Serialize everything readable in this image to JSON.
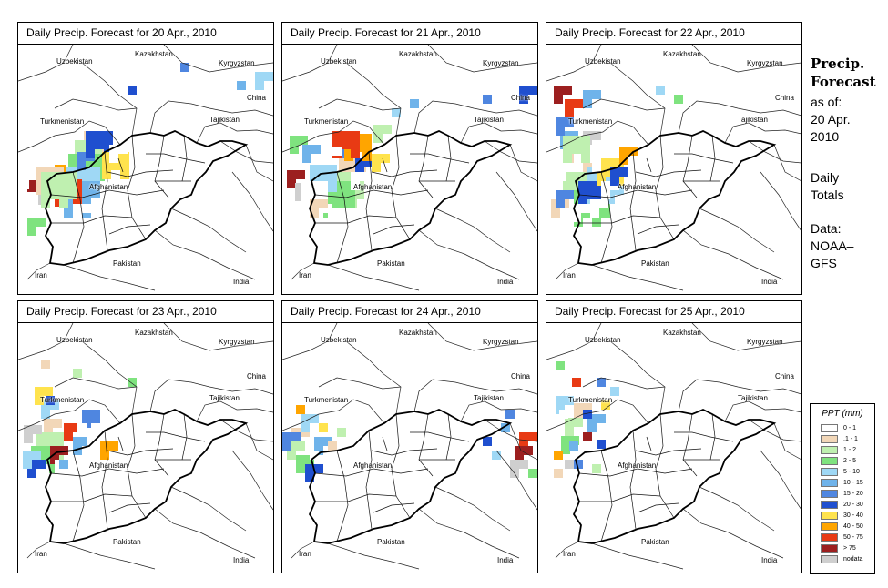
{
  "panels": [
    {
      "title": "Daily Precip. Forecast for  20 Apr., 2010",
      "cells": [
        [
          1,
          72,
          95,
          3
        ],
        [
          2,
          62,
          105,
          3
        ],
        [
          3,
          55,
          120,
          4
        ],
        [
          4,
          50,
          135,
          4
        ],
        [
          5,
          50,
          150,
          4
        ],
        [
          6,
          64,
          118,
          2
        ],
        [
          7,
          74,
          95,
          3
        ],
        [
          8,
          92,
          118,
          3
        ],
        [
          9,
          32,
          132,
          2
        ],
        [
          10,
          40,
          148,
          3
        ],
        [
          11,
          10,
          142,
          2
        ],
        [
          12,
          22,
          156,
          2
        ],
        [
          13,
          2,
          139,
          2
        ],
        [
          14,
          18,
          178,
          2
        ],
        [
          15,
          60,
          175,
          2
        ],
        [
          16,
          80,
          168,
          2
        ],
        [
          17,
          30,
          118,
          2
        ],
        [
          18,
          100,
          110,
          2
        ],
        [
          1,
          20,
          135,
          3
        ],
        [
          2,
          25,
          140,
          4
        ],
        [
          3,
          10,
          190,
          2
        ],
        [
          4,
          260,
          30,
          2
        ],
        [
          5,
          240,
          40,
          1
        ],
        [
          6,
          178,
          20,
          1
        ],
        [
          7,
          120,
          45,
          1
        ]
      ]
    },
    {
      "title": "Daily Precip. Forecast for  21 Apr., 2010",
      "cells": [
        [
          1,
          62,
          125,
          3
        ],
        [
          2,
          52,
          140,
          4
        ],
        [
          3,
          40,
          150,
          4
        ],
        [
          4,
          30,
          132,
          3
        ],
        [
          5,
          22,
          110,
          2
        ],
        [
          6,
          60,
          105,
          2
        ],
        [
          7,
          80,
          125,
          2
        ],
        [
          8,
          98,
          120,
          2
        ],
        [
          9,
          68,
          98,
          3
        ],
        [
          10,
          55,
          95,
          3
        ],
        [
          11,
          5,
          138,
          2
        ],
        [
          12,
          14,
          152,
          2
        ],
        [
          13,
          35,
          175,
          2
        ],
        [
          14,
          60,
          180,
          2
        ],
        [
          15,
          90,
          150,
          2
        ],
        [
          16,
          45,
          112,
          2
        ],
        [
          17,
          75,
          140,
          2
        ],
        [
          18,
          20,
          150,
          3
        ],
        [
          1,
          30,
          170,
          2
        ],
        [
          2,
          100,
          88,
          2
        ],
        [
          3,
          8,
          100,
          2
        ],
        [
          4,
          120,
          70,
          1
        ],
        [
          5,
          140,
          60,
          1
        ],
        [
          6,
          220,
          55,
          1
        ],
        [
          7,
          260,
          45,
          2
        ]
      ]
    },
    {
      "title": "Daily Precip. Forecast for  22 Apr., 2010",
      "cells": [
        [
          1,
          24,
          120,
          3
        ],
        [
          2,
          18,
          140,
          3
        ],
        [
          3,
          30,
          160,
          4
        ],
        [
          4,
          45,
          135,
          4
        ],
        [
          5,
          15,
          95,
          2
        ],
        [
          6,
          10,
          80,
          2
        ],
        [
          7,
          35,
          150,
          3
        ],
        [
          8,
          55,
          125,
          3
        ],
        [
          9,
          80,
          112,
          2
        ],
        [
          10,
          20,
          60,
          2
        ],
        [
          11,
          8,
          45,
          2
        ],
        [
          12,
          40,
          95,
          2
        ],
        [
          13,
          28,
          175,
          2
        ],
        [
          14,
          30,
          110,
          3
        ],
        [
          15,
          60,
          150,
          2
        ],
        [
          16,
          12,
          130,
          2
        ],
        [
          17,
          48,
          170,
          2
        ],
        [
          18,
          95,
          140,
          2
        ],
        [
          1,
          5,
          170,
          2
        ],
        [
          2,
          18,
          100,
          3
        ],
        [
          3,
          140,
          55,
          1
        ],
        [
          4,
          120,
          45,
          1
        ],
        [
          5,
          40,
          50,
          2
        ],
        [
          6,
          10,
          160,
          2
        ],
        [
          7,
          70,
          135,
          2
        ]
      ]
    },
    {
      "title": "Daily Precip. Forecast for  23 Apr., 2010",
      "cells": [
        [
          1,
          28,
          105,
          2
        ],
        [
          2,
          20,
          120,
          3
        ],
        [
          3,
          14,
          135,
          3
        ],
        [
          4,
          25,
          85,
          2
        ],
        [
          5,
          60,
          125,
          2
        ],
        [
          6,
          70,
          95,
          2
        ],
        [
          7,
          10,
          150,
          2
        ],
        [
          8,
          18,
          70,
          2
        ],
        [
          9,
          90,
          130,
          2
        ],
        [
          10,
          50,
          110,
          2
        ],
        [
          11,
          35,
          135,
          2
        ],
        [
          12,
          6,
          112,
          2
        ],
        [
          13,
          40,
          150,
          2
        ],
        [
          14,
          76,
          118,
          2
        ],
        [
          15,
          20,
          160,
          1
        ],
        [
          16,
          65,
          110,
          1
        ],
        [
          17,
          100,
          140,
          2
        ],
        [
          18,
          240,
          18,
          2
        ],
        [
          1,
          25,
          40,
          1
        ],
        [
          2,
          60,
          50,
          1
        ],
        [
          3,
          120,
          60,
          1
        ],
        [
          4,
          5,
          140,
          2
        ],
        [
          5,
          45,
          150,
          1
        ],
        [
          6,
          80,
          100,
          1
        ],
        [
          7,
          30,
          80,
          1
        ]
      ]
    },
    {
      "title": "Daily Precip. Forecast for  24 Apr., 2010",
      "cells": [
        [
          1,
          10,
          115,
          2
        ],
        [
          2,
          5,
          130,
          2
        ],
        [
          3,
          15,
          145,
          2
        ],
        [
          4,
          20,
          100,
          2
        ],
        [
          5,
          35,
          125,
          2
        ],
        [
          6,
          0,
          120,
          2
        ],
        [
          7,
          25,
          155,
          2
        ],
        [
          8,
          40,
          110,
          1
        ],
        [
          9,
          15,
          90,
          1
        ],
        [
          10,
          260,
          120,
          2
        ],
        [
          11,
          255,
          135,
          2
        ],
        [
          12,
          250,
          150,
          2
        ],
        [
          13,
          275,
          140,
          1
        ],
        [
          14,
          205,
          150,
          1
        ],
        [
          15,
          210,
          135,
          1
        ],
        [
          16,
          265,
          100,
          1
        ],
        [
          17,
          5,
          160,
          1
        ],
        [
          18,
          30,
          140,
          1
        ],
        [
          1,
          50,
          130,
          1
        ],
        [
          2,
          60,
          115,
          1
        ],
        [
          3,
          270,
          160,
          1
        ],
        [
          4,
          230,
          140,
          1
        ],
        [
          5,
          240,
          110,
          1
        ],
        [
          6,
          245,
          95,
          1
        ],
        [
          7,
          220,
          125,
          1
        ]
      ]
    },
    {
      "title": "Daily Precip. Forecast for  25 Apr., 2010",
      "cells": [
        [
          1,
          30,
          88,
          2
        ],
        [
          2,
          20,
          104,
          2
        ],
        [
          3,
          16,
          124,
          2
        ],
        [
          4,
          10,
          80,
          2
        ],
        [
          5,
          45,
          100,
          2
        ],
        [
          6,
          30,
          150,
          1
        ],
        [
          7,
          55,
          128,
          1
        ],
        [
          8,
          60,
          85,
          1
        ],
        [
          9,
          8,
          140,
          1
        ],
        [
          10,
          28,
          60,
          1
        ],
        [
          11,
          40,
          120,
          1
        ],
        [
          12,
          20,
          150,
          1
        ],
        [
          13,
          70,
          110,
          1
        ],
        [
          14,
          14,
          95,
          1
        ],
        [
          15,
          45,
          140,
          1
        ],
        [
          16,
          0,
          110,
          1
        ],
        [
          17,
          65,
          140,
          1
        ],
        [
          18,
          35,
          72,
          1
        ],
        [
          1,
          8,
          160,
          1
        ],
        [
          2,
          50,
          155,
          1
        ],
        [
          3,
          10,
          42,
          1
        ],
        [
          4,
          70,
          70,
          1
        ],
        [
          5,
          25,
          130,
          1
        ],
        [
          6,
          55,
          60,
          1
        ],
        [
          7,
          40,
          95,
          1
        ]
      ]
    }
  ],
  "map_labels": {
    "kazakhstan": "Kazakhstan",
    "uzbekistan": "Uzbekistan",
    "kyrgyzstan": "Kyrgyzstan",
    "turkmenistan": "Turkmenistan",
    "tajikistan": "Tajikistan",
    "china": "China",
    "afghanistan": "Afghanistan",
    "pakistan": "Pakistan",
    "iran": "Iran",
    "india": "India"
  },
  "side_panel": {
    "title_line1": "Precip.",
    "title_line2": "Forecast",
    "asof_line1": "as of:",
    "asof_line2": "20 Apr.",
    "asof_line3": "2010",
    "totals_line1": "Daily",
    "totals_line2": "Totals",
    "data_line1": "Data:",
    "data_line2": "NOAA–",
    "data_line3": "GFS"
  },
  "legend": {
    "title": "PPT (mm)",
    "items": [
      {
        "label": "0 - 1",
        "color": "#ffffff"
      },
      {
        "label": ".1 - 1",
        "color": "#f2d7b8"
      },
      {
        "label": "1 - 2",
        "color": "#bff0b0"
      },
      {
        "label": "2 - 5",
        "color": "#7fe37f"
      },
      {
        "label": "5 - 10",
        "color": "#9fd8f5"
      },
      {
        "label": "10 - 15",
        "color": "#6fb3ea"
      },
      {
        "label": "15 - 20",
        "color": "#4f86e0"
      },
      {
        "label": "20 - 30",
        "color": "#1f4fcf"
      },
      {
        "label": "30 - 40",
        "color": "#ffe34d"
      },
      {
        "label": "40 - 50",
        "color": "#ffa500"
      },
      {
        "label": "50 - 75",
        "color": "#e83a14"
      },
      {
        "label": "> 75",
        "color": "#9c1f1f"
      },
      {
        "label": "nodata",
        "color": "#cfcfcf"
      }
    ]
  }
}
